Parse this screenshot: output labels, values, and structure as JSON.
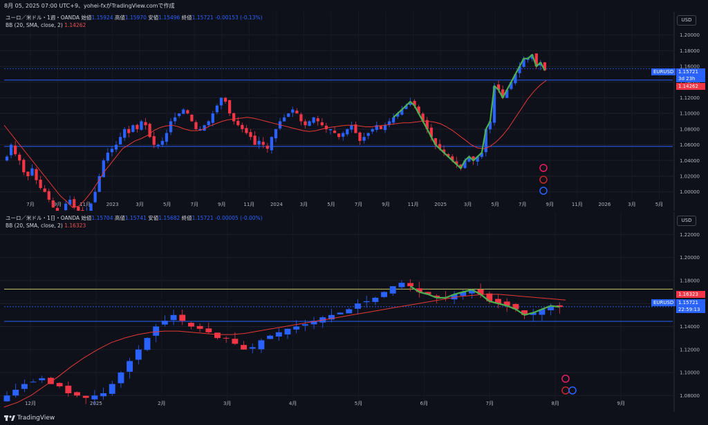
{
  "header": {
    "title": "8月 05, 2025 07:00 UTC+9、yohei-fxがTradingView.comで作成"
  },
  "footer": {
    "logo_text": "TradingView"
  },
  "colors": {
    "up": "#2962ff",
    "down": "#f23645",
    "bb": "#e53935",
    "wave": "#4caf50",
    "hline": "#2962ff",
    "yline": "#c8c864"
  },
  "panes": [
    {
      "legend": {
        "symbol": "ユーロ／米ドル・1週・OANDA",
        "o_label": "始値",
        "o": "1.15924",
        "h_label": "高値",
        "h": "1.15970",
        "l_label": "安値",
        "l": "1.15496",
        "c_label": "終値",
        "c": "1.15721",
        "chg": "-0.00153 (-0.13%)",
        "bb_label": "BB (20, SMA, close, 2)",
        "bb_value": "1.14262"
      },
      "currency": "USD",
      "price_tag": {
        "symbol": "EURUSD",
        "price": "1.15721",
        "countdown": "3d 23h"
      },
      "bb_tag": "1.14262"
    },
    {
      "legend": {
        "symbol": "ユーロ／米ドル・1日・OANDA",
        "o_label": "始値",
        "o": "1.15704",
        "h_label": "高値",
        "h": "1.15741",
        "l_label": "安値",
        "l": "1.15682",
        "c_label": "終値",
        "c": "1.15721",
        "chg": "-0.00005 (-0.00%)",
        "bb_label": "BB (20, SMA, close, 2)",
        "bb_value": "1.16323"
      },
      "currency": "USD",
      "price_tag": {
        "symbol": "EURUSD",
        "price": "1.15721",
        "countdown": "22:59:13"
      },
      "bb_tag": "1.16323"
    }
  ],
  "chart_data": [
    {
      "type": "candlestick",
      "timeframe": "weekly",
      "y_ticks": [
        "1.00000",
        "1.02000",
        "1.04000",
        "1.06000",
        "1.08000",
        "1.10000",
        "1.12000",
        "1.14000",
        "1.16000",
        "1.18000",
        "1.20000"
      ],
      "ylim": [
        0.99,
        1.205
      ],
      "x_ticks": [
        "7月",
        "9月",
        "11月",
        "2023",
        "3月",
        "5月",
        "7月",
        "9月",
        "11月",
        "2024",
        "3月",
        "5月",
        "7月",
        "9月",
        "11月",
        "2025",
        "3月",
        "5月",
        "7月",
        "9月",
        "11月",
        "2026",
        "3月",
        "5月"
      ],
      "horizontal_lines": [
        1.058,
        1.1425
      ],
      "current_price": 1.15721,
      "closes": [
        1.045,
        1.06,
        1.048,
        1.04,
        1.025,
        1.02,
        1.03,
        1.015,
        1.005,
        1.0,
        0.99,
        0.98,
        0.97,
        0.975,
        0.985,
        0.99,
        0.98,
        0.975,
        0.965,
        0.975,
        0.985,
        1.0,
        1.02,
        1.04,
        1.05,
        1.055,
        1.06,
        1.07,
        1.08,
        1.075,
        1.085,
        1.08,
        1.09,
        1.085,
        1.07,
        1.06,
        1.06,
        1.065,
        1.075,
        1.09,
        1.095,
        1.1,
        1.105,
        1.1,
        1.09,
        1.08,
        1.08,
        1.085,
        1.09,
        1.1,
        1.11,
        1.12,
        1.115,
        1.1,
        1.09,
        1.085,
        1.08,
        1.075,
        1.07,
        1.06,
        1.065,
        1.06,
        1.055,
        1.07,
        1.08,
        1.09,
        1.095,
        1.1,
        1.105,
        1.1,
        1.09,
        1.085,
        1.09,
        1.095,
        1.09,
        1.085,
        1.08,
        1.08,
        1.075,
        1.07,
        1.075,
        1.08,
        1.085,
        1.075,
        1.065,
        1.07,
        1.075,
        1.08,
        1.085,
        1.08,
        1.085,
        1.09,
        1.095,
        1.1,
        1.105,
        1.11,
        1.115,
        1.11,
        1.1,
        1.09,
        1.08,
        1.07,
        1.06,
        1.055,
        1.05,
        1.045,
        1.04,
        1.035,
        1.03,
        1.04,
        1.045,
        1.04,
        1.045,
        1.05,
        1.08,
        1.09,
        1.135,
        1.13,
        1.12,
        1.13,
        1.14,
        1.15,
        1.16,
        1.17,
        1.17,
        1.175,
        1.16,
        1.165,
        1.155
      ],
      "bb_basis": [
        1.085,
        1.075,
        1.065,
        1.055,
        1.045,
        1.035,
        1.025,
        1.015,
        1.005,
        0.995,
        0.988,
        0.98,
        0.982,
        0.99,
        1.0,
        1.012,
        1.025,
        1.035,
        1.045,
        1.055,
        1.06,
        1.065,
        1.068,
        1.072,
        1.078,
        1.082,
        1.084,
        1.085,
        1.083,
        1.08,
        1.078,
        1.078,
        1.08,
        1.084,
        1.087,
        1.09,
        1.092,
        1.093,
        1.094,
        1.095,
        1.094,
        1.092,
        1.09,
        1.088,
        1.086,
        1.084,
        1.082,
        1.08,
        1.078,
        1.077,
        1.078,
        1.08,
        1.082,
        1.083,
        1.084,
        1.085,
        1.085,
        1.084,
        1.083,
        1.083,
        1.084,
        1.085,
        1.086,
        1.087,
        1.088,
        1.088,
        1.089,
        1.09,
        1.09,
        1.089,
        1.087,
        1.083,
        1.078,
        1.072,
        1.066,
        1.06,
        1.056,
        1.055,
        1.058,
        1.064,
        1.072,
        1.082,
        1.094,
        1.106,
        1.118,
        1.128,
        1.136,
        1.142
      ]
    },
    {
      "type": "candlestick",
      "timeframe": "daily",
      "y_ticks": [
        "1.08000",
        "1.10000",
        "1.12000",
        "1.14000",
        "1.16000",
        "1.18000",
        "1.20000",
        "1.22000"
      ],
      "ylim": [
        1.076,
        1.225
      ],
      "x_ticks": [
        "12月",
        "2025",
        "2月",
        "3月",
        "4月",
        "5月",
        "6月",
        "7月",
        "8月",
        "9月"
      ],
      "horizontal_lines": [
        1.1445,
        1.1725
      ],
      "current_price": 1.15721,
      "closes": [
        1.08,
        1.085,
        1.09,
        1.092,
        1.095,
        1.09,
        1.088,
        1.082,
        1.08,
        1.078,
        1.08,
        1.082,
        1.09,
        1.1,
        1.11,
        1.12,
        1.13,
        1.14,
        1.145,
        1.15,
        1.145,
        1.14,
        1.138,
        1.135,
        1.13,
        1.13,
        1.125,
        1.12,
        1.122,
        1.128,
        1.132,
        1.135,
        1.138,
        1.14,
        1.142,
        1.145,
        1.148,
        1.15,
        1.152,
        1.155,
        1.16,
        1.162,
        1.165,
        1.17,
        1.175,
        1.178,
        1.175,
        1.17,
        1.168,
        1.165,
        1.165,
        1.168,
        1.17,
        1.172,
        1.168,
        1.162,
        1.16,
        1.158,
        1.155,
        1.15,
        1.152,
        1.155,
        1.158,
        1.157
      ],
      "bb_basis": [
        1.07,
        1.074,
        1.08,
        1.088,
        1.096,
        1.105,
        1.113,
        1.12,
        1.126,
        1.13,
        1.133,
        1.135,
        1.136,
        1.136,
        1.135,
        1.134,
        1.133,
        1.133,
        1.134,
        1.136,
        1.138,
        1.14,
        1.142,
        1.144,
        1.146,
        1.148,
        1.15,
        1.152,
        1.154,
        1.156,
        1.158,
        1.16,
        1.162,
        1.164,
        1.166,
        1.167,
        1.168,
        1.168,
        1.167,
        1.166,
        1.165,
        1.164,
        1.163
      ]
    }
  ]
}
